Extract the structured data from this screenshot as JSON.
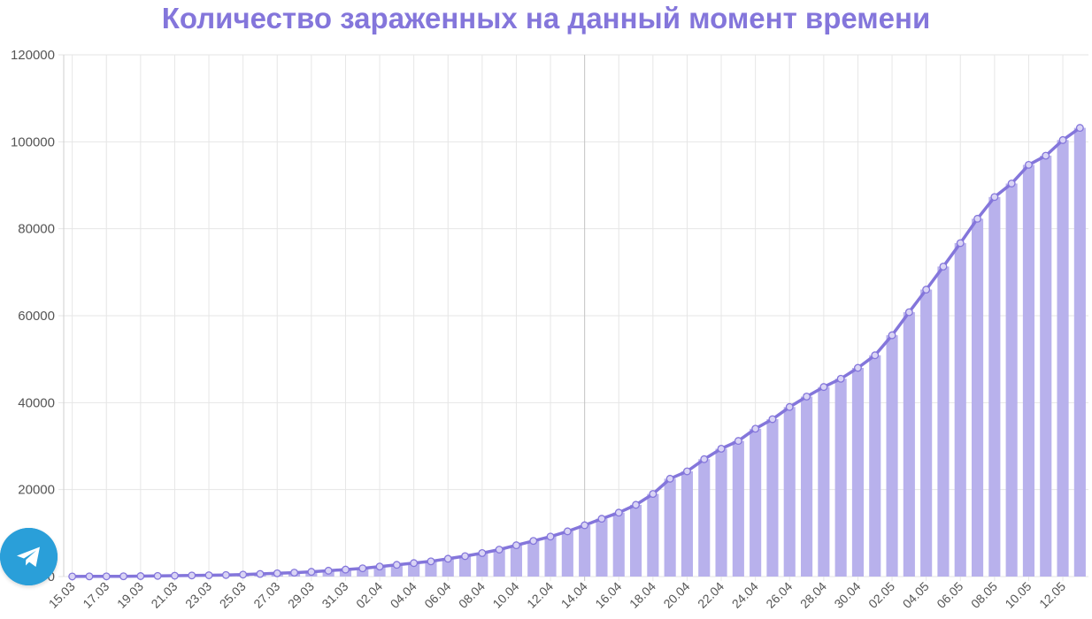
{
  "chart_data": {
    "type": "bar",
    "title": "Количество зараженных на данный момент времени",
    "x": [
      "15.03",
      "16.03",
      "17.03",
      "18.03",
      "19.03",
      "20.03",
      "21.03",
      "22.03",
      "23.03",
      "24.03",
      "25.03",
      "26.03",
      "27.03",
      "28.03",
      "29.03",
      "30.03",
      "31.03",
      "01.04",
      "02.04",
      "03.04",
      "04.04",
      "05.04",
      "06.04",
      "07.04",
      "08.04",
      "09.04",
      "10.04",
      "11.04",
      "12.04",
      "13.04",
      "14.04",
      "15.04",
      "16.04",
      "17.04",
      "18.04",
      "19.04",
      "20.04",
      "21.04",
      "22.04",
      "23.04",
      "24.04",
      "25.04",
      "26.04",
      "27.04",
      "28.04",
      "29.04",
      "30.04",
      "01.05",
      "02.05",
      "03.05",
      "04.05",
      "05.05",
      "06.05",
      "07.05",
      "08.05",
      "09.05",
      "10.05",
      "11.05",
      "12.05",
      "13.05"
    ],
    "tick_labels": [
      "15.03",
      "17.03",
      "19.03",
      "21.03",
      "23.03",
      "25.03",
      "27.03",
      "29.03",
      "31.03",
      "02.04",
      "04.04",
      "06.04",
      "08.04",
      "10.04",
      "12.04",
      "14.04",
      "16.04",
      "18.04",
      "20.04",
      "22.04",
      "24.04",
      "26.04",
      "28.04",
      "30.04",
      "02.05",
      "04.05",
      "06.05",
      "08.05",
      "10.05",
      "12.05"
    ],
    "values": [
      20,
      35,
      45,
      60,
      100,
      150,
      200,
      250,
      300,
      350,
      450,
      600,
      750,
      900,
      1100,
      1350,
      1600,
      1900,
      2300,
      2700,
      3100,
      3500,
      4100,
      4700,
      5400,
      6200,
      7200,
      8200,
      9200,
      10400,
      11800,
      13300,
      14700,
      16500,
      19000,
      22500,
      24200,
      27000,
      29400,
      31200,
      34000,
      36200,
      39000,
      41400,
      43600,
      45500,
      48000,
      50900,
      55500,
      60800,
      66000,
      71300,
      76700,
      82300,
      87300,
      90400,
      94700,
      96800,
      100400,
      103200
    ],
    "ylim": [
      0,
      120000
    ],
    "yticks": [
      0,
      20000,
      40000,
      60000,
      80000,
      100000,
      120000
    ],
    "grid": true,
    "legend": "none",
    "colors": {
      "title": "#8476db",
      "bar": "#b8b1ec",
      "line": "#8476db",
      "grid": "#e6e6e6",
      "axis_text": "#555555",
      "telegram": "#2a9fd9"
    }
  },
  "telegram_icon": "paper-plane-icon"
}
